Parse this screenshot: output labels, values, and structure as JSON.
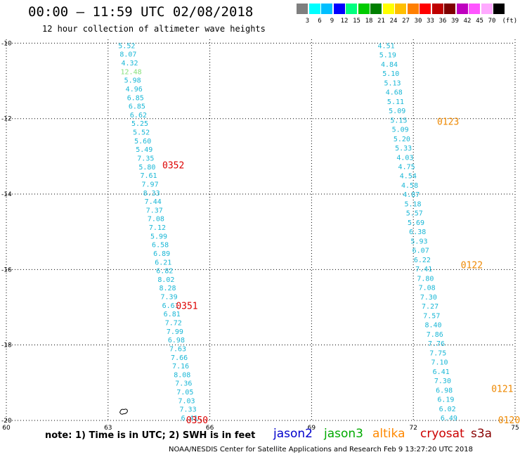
{
  "header": {
    "title": "00:00 – 11:59 UTC 02/08/2018",
    "subtitle": "12 hour collection of altimeter wave heights"
  },
  "legend": {
    "unit": "(ft)",
    "bins": [
      {
        "color": "#7f7f7f",
        "label": "3"
      },
      {
        "color": "#00ffff",
        "label": "6"
      },
      {
        "color": "#00bfff",
        "label": "9"
      },
      {
        "color": "#0000ff",
        "label": "12"
      },
      {
        "color": "#00ff7f",
        "label": "15"
      },
      {
        "color": "#00cc00",
        "label": "18"
      },
      {
        "color": "#007f00",
        "label": "21"
      },
      {
        "color": "#ffff00",
        "label": "24"
      },
      {
        "color": "#ffbf00",
        "label": "27"
      },
      {
        "color": "#ff7f00",
        "label": "30"
      },
      {
        "color": "#ff0000",
        "label": "33"
      },
      {
        "color": "#bf0000",
        "label": "36"
      },
      {
        "color": "#7f0000",
        "label": "39"
      },
      {
        "color": "#bf00bf",
        "label": "42"
      },
      {
        "color": "#ff55ff",
        "label": "45"
      },
      {
        "color": "#ffaaff",
        "label": "70"
      },
      {
        "color": "#000000",
        "label": ""
      }
    ]
  },
  "map": {
    "lon_range": [
      60,
      75
    ],
    "lat_range": [
      -20,
      -9.9
    ],
    "lon_ticks": [
      "60",
      "63",
      "66",
      "69",
      "72",
      "75"
    ],
    "lat_ticks": [
      "-10",
      "-12",
      "-14",
      "-16",
      "-18",
      "-20"
    ],
    "lon_tick_values": [
      60,
      63,
      66,
      69,
      72,
      75
    ],
    "lat_tick_values": [
      -10,
      -12,
      -14,
      -16,
      -18,
      -20
    ],
    "grid": "dotted",
    "colors": {
      "swh_normal": "#1ab7d6",
      "swh_high": "#86e07a",
      "pass_cryosat": "#dd0000",
      "pass_altika": "#ee8800"
    },
    "tracks": [
      {
        "start_lon": 63.55,
        "end_lon": 65.4,
        "values": [
          "5.52",
          "8.07",
          "4.32",
          "12.48",
          "5.98",
          "4.96",
          "6.85",
          "6.85",
          "6.62",
          "5.25",
          "5.52",
          "5.60",
          "5.49",
          "7.35",
          "5.80",
          "7.61",
          "7.97",
          "8.33",
          "7.44",
          "7.37",
          "7.08",
          "7.12",
          "5.99",
          "6.58",
          "6.89",
          "6.21",
          "6.82",
          "8.02",
          "8.28",
          "7.39",
          "6.61",
          "6.81",
          "7.72",
          "7.99",
          "6.98",
          "7.63",
          "7.66",
          "7.16",
          "8.08",
          "7.36",
          "7.05",
          "7.03",
          "7.33",
          "6.41"
        ],
        "highlight_index": 3
      },
      {
        "start_lon": 71.2,
        "end_lon": 73.05,
        "values": [
          "4.51",
          "5.19",
          "4.84",
          "5.10",
          "5.13",
          "4.68",
          "5.11",
          "5.09",
          "5.15",
          "5.09",
          "5.20",
          "5.33",
          "4.03",
          "4.75",
          "4.54",
          "4.58",
          "4.87",
          "5.18",
          "5.57",
          "5.69",
          "6.38",
          "5.93",
          "6.07",
          "6.22",
          "7.41",
          "7.80",
          "7.08",
          "7.30",
          "7.27",
          "7.57",
          "8.40",
          "7.86",
          "7.76",
          "7.75",
          "7.10",
          "6.41",
          "7.30",
          "6.98",
          "6.19",
          "6.02",
          "6.49"
        ],
        "highlight_index": -1
      }
    ],
    "pass_labels": [
      {
        "text": "0352",
        "lon": 64.6,
        "lat": -13.23,
        "sat": "cryosat"
      },
      {
        "text": "0351",
        "lon": 65.0,
        "lat": -16.95,
        "sat": "cryosat"
      },
      {
        "text": "0350",
        "lon": 65.3,
        "lat": -19.98,
        "sat": "cryosat"
      },
      {
        "text": "0123",
        "lon": 72.7,
        "lat": -12.07,
        "sat": "altika"
      },
      {
        "text": "0122",
        "lon": 73.4,
        "lat": -15.87,
        "sat": "altika"
      },
      {
        "text": "0121",
        "lon": 74.3,
        "lat": -19.15,
        "sat": "altika"
      },
      {
        "text": "0120",
        "lon": 74.5,
        "lat": -19.98,
        "sat": "altika"
      }
    ],
    "island": {
      "lon": 63.45,
      "lat": -19.75
    }
  },
  "footer": {
    "note": "note: 1) Time is in UTC; 2) SWH is in feet",
    "satellites": [
      {
        "name": "jason2",
        "color": "#0000cc"
      },
      {
        "name": "jason3",
        "color": "#00aa00"
      },
      {
        "name": "altika",
        "color": "#ff8800"
      },
      {
        "name": "cryosat",
        "color": "#cc0000"
      },
      {
        "name": "s3a",
        "color": "#880000"
      }
    ],
    "credit": "NOAA/NESDIS Center for Satellite Applications and Research   Feb  9 13:27:20 UTC 2018"
  }
}
